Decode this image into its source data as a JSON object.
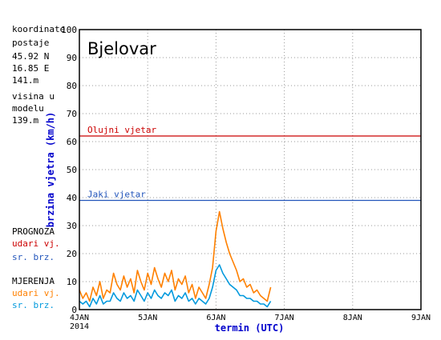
{
  "station_info": {
    "coord_label_1": "koordinate",
    "coord_label_2": "postaje",
    "lat": "45.92 N",
    "lon": "16.85 E",
    "station_height": "141.m",
    "height_label_1": "visina u",
    "height_label_2": "modelu",
    "model_height": "139.m"
  },
  "legend": {
    "forecast_title": "PROGNOZA",
    "forecast_gust": "udari vj.",
    "forecast_mean": "sr. brz.",
    "measured_title": "MJERENJA",
    "measured_gust": "udari vj.",
    "measured_mean": "sr. brz."
  },
  "colors": {
    "gust_measured": "#ff8000",
    "mean_measured": "#0099dd",
    "forecast_gust": "#cc0000",
    "forecast_mean": "#2255bb",
    "storm_line": "#cc0000",
    "strong_line": "#2255bb",
    "axis_label": "#0000cc"
  },
  "chart_data": {
    "type": "line",
    "title": "Bjelovar",
    "xlabel": "termin (UTC)",
    "ylabel": "brzina vjetra (km/h)",
    "ylim": [
      0,
      100
    ],
    "yticks": [
      0,
      10,
      20,
      30,
      40,
      50,
      60,
      70,
      80,
      90,
      100
    ],
    "xlim": [
      0,
      5
    ],
    "xticks": [
      {
        "x": 0,
        "label": "4JAN",
        "sublabel": "2014"
      },
      {
        "x": 1,
        "label": "5JAN"
      },
      {
        "x": 2,
        "label": "6JAN"
      },
      {
        "x": 3,
        "label": "7JAN"
      },
      {
        "x": 4,
        "label": "8JAN"
      },
      {
        "x": 5,
        "label": "9JAN"
      }
    ],
    "grid": true,
    "thresholds": [
      {
        "name": "Olujni vjetar",
        "value": 62
      },
      {
        "name": "Jaki vjetar",
        "value": 39
      }
    ],
    "series": [
      {
        "name": "udari vj.",
        "x": [
          0.0,
          0.05,
          0.1,
          0.15,
          0.2,
          0.25,
          0.3,
          0.35,
          0.4,
          0.45,
          0.5,
          0.55,
          0.6,
          0.65,
          0.7,
          0.75,
          0.8,
          0.85,
          0.9,
          0.95,
          1.0,
          1.05,
          1.1,
          1.15,
          1.2,
          1.25,
          1.3,
          1.35,
          1.4,
          1.45,
          1.5,
          1.55,
          1.6,
          1.65,
          1.7,
          1.75,
          1.8,
          1.85,
          1.9,
          1.95,
          2.0,
          2.05,
          2.1,
          2.15,
          2.2,
          2.25,
          2.3,
          2.35,
          2.4,
          2.45,
          2.5,
          2.55,
          2.6,
          2.65,
          2.7,
          2.75,
          2.8
        ],
        "values": [
          7,
          4,
          6,
          3,
          8,
          5,
          10,
          4,
          7,
          6,
          13,
          9,
          7,
          12,
          8,
          11,
          6,
          14,
          10,
          7,
          13,
          9,
          15,
          11,
          8,
          13,
          10,
          14,
          7,
          11,
          9,
          12,
          6,
          9,
          4,
          8,
          6,
          4,
          9,
          15,
          28,
          35,
          29,
          24,
          20,
          17,
          14,
          10,
          11,
          8,
          9,
          6,
          7,
          5,
          4,
          3,
          8
        ]
      },
      {
        "name": "sr. brz.",
        "x": [
          0.0,
          0.05,
          0.1,
          0.15,
          0.2,
          0.25,
          0.3,
          0.35,
          0.4,
          0.45,
          0.5,
          0.55,
          0.6,
          0.65,
          0.7,
          0.75,
          0.8,
          0.85,
          0.9,
          0.95,
          1.0,
          1.05,
          1.1,
          1.15,
          1.2,
          1.25,
          1.3,
          1.35,
          1.4,
          1.45,
          1.5,
          1.55,
          1.6,
          1.65,
          1.7,
          1.75,
          1.8,
          1.85,
          1.9,
          1.95,
          2.0,
          2.05,
          2.1,
          2.15,
          2.2,
          2.25,
          2.3,
          2.35,
          2.4,
          2.45,
          2.5,
          2.55,
          2.6,
          2.65,
          2.7,
          2.75,
          2.8
        ],
        "values": [
          3,
          2,
          3,
          1,
          4,
          2,
          5,
          2,
          3,
          3,
          6,
          4,
          3,
          6,
          4,
          5,
          3,
          7,
          5,
          3,
          6,
          4,
          7,
          5,
          4,
          6,
          5,
          7,
          3,
          5,
          4,
          6,
          3,
          4,
          2,
          4,
          3,
          2,
          4,
          8,
          14,
          16,
          13,
          11,
          9,
          8,
          7,
          5,
          5,
          4,
          4,
          3,
          3,
          2,
          2,
          1,
          3
        ]
      }
    ]
  }
}
